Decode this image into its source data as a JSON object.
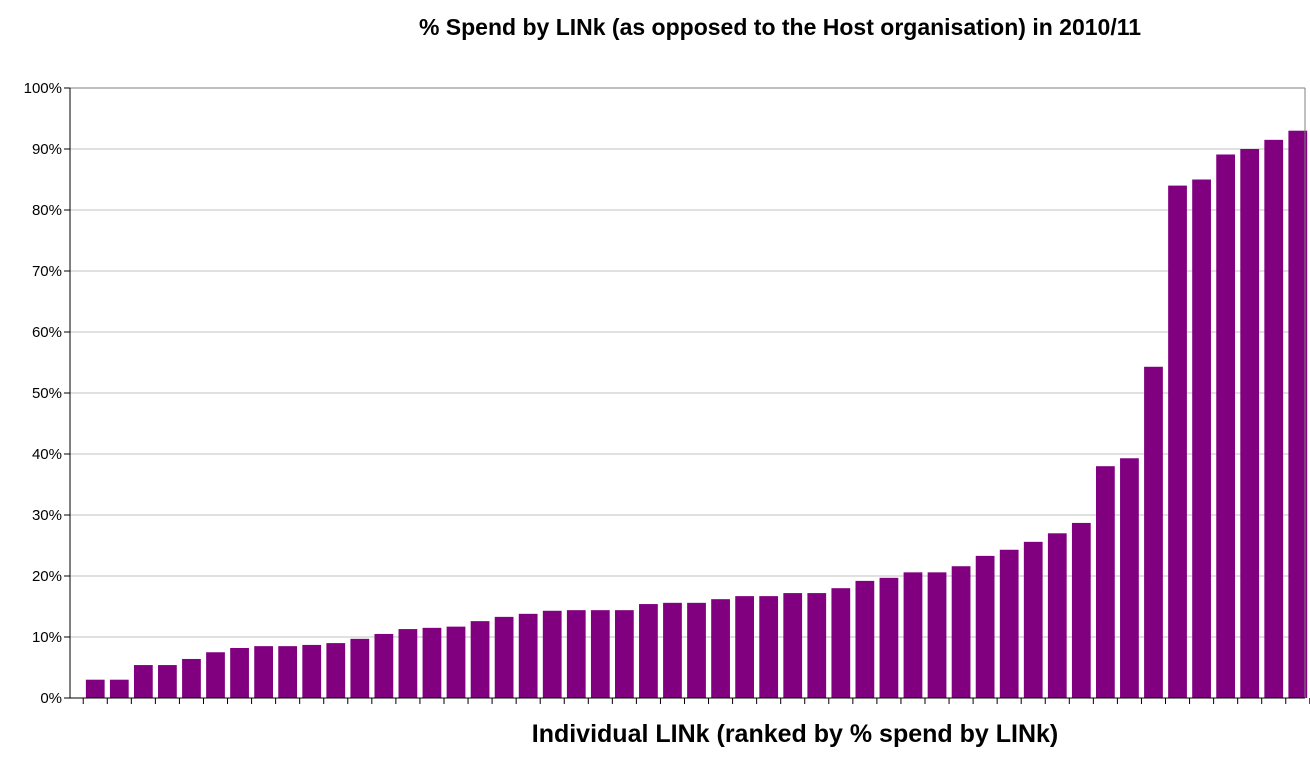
{
  "chart_data": {
    "type": "bar",
    "title": "% Spend by LINk (as opposed to the Host organisation) in 2010/11",
    "xlabel": "Individual LINk (ranked by % spend by LINk)",
    "ylabel": "",
    "ylim": [
      0,
      100
    ],
    "y_ticks": [
      "0%",
      "10%",
      "20%",
      "30%",
      "40%",
      "50%",
      "60%",
      "70%",
      "80%",
      "90%",
      "100%"
    ],
    "grid": true,
    "legend": "none",
    "bar_color": "#800080",
    "values": [
      3.0,
      3.0,
      5.4,
      5.4,
      6.4,
      7.5,
      8.2,
      8.5,
      8.5,
      8.7,
      9.0,
      9.7,
      10.5,
      11.3,
      11.5,
      11.7,
      12.6,
      13.3,
      13.8,
      14.3,
      14.4,
      14.4,
      14.4,
      15.4,
      15.6,
      15.6,
      16.2,
      16.7,
      16.7,
      17.2,
      17.2,
      18.0,
      19.2,
      19.7,
      20.6,
      20.6,
      21.6,
      23.3,
      24.3,
      25.6,
      27.0,
      28.7,
      38.0,
      39.3,
      54.3,
      84.0,
      85.0,
      89.1,
      90.0,
      91.5,
      93.0
    ]
  }
}
